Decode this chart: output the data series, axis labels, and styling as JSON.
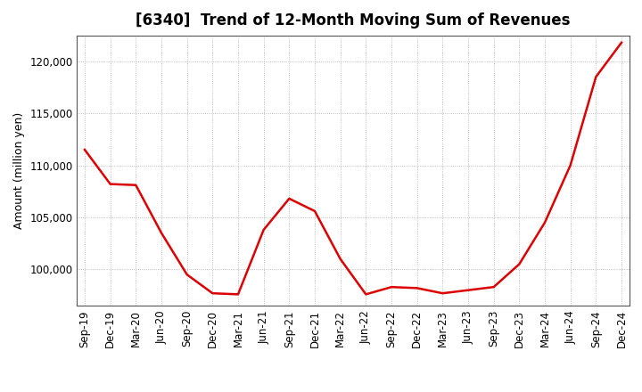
{
  "title": "[6340]  Trend of 12-Month Moving Sum of Revenues",
  "ylabel": "Amount (million yen)",
  "line_color": "#dd0000",
  "background_color": "#ffffff",
  "grid_color": "#999999",
  "ylim": [
    96500,
    122500
  ],
  "yticks": [
    100000,
    105000,
    110000,
    115000,
    120000
  ],
  "labels": [
    "Sep-19",
    "Dec-19",
    "Mar-20",
    "Jun-20",
    "Sep-20",
    "Dec-20",
    "Mar-21",
    "Jun-21",
    "Sep-21",
    "Dec-21",
    "Mar-22",
    "Jun-22",
    "Sep-22",
    "Dec-22",
    "Mar-23",
    "Jun-23",
    "Sep-23",
    "Dec-23",
    "Mar-24",
    "Jun-24",
    "Sep-24",
    "Dec-24"
  ],
  "values": [
    111500,
    108200,
    108100,
    103500,
    99500,
    97700,
    97600,
    103800,
    106800,
    105600,
    101000,
    97600,
    98300,
    98200,
    97700,
    98000,
    98300,
    100500,
    104500,
    110000,
    118500,
    121800
  ],
  "title_fontsize": 12,
  "tick_fontsize": 8.5,
  "ylabel_fontsize": 9
}
